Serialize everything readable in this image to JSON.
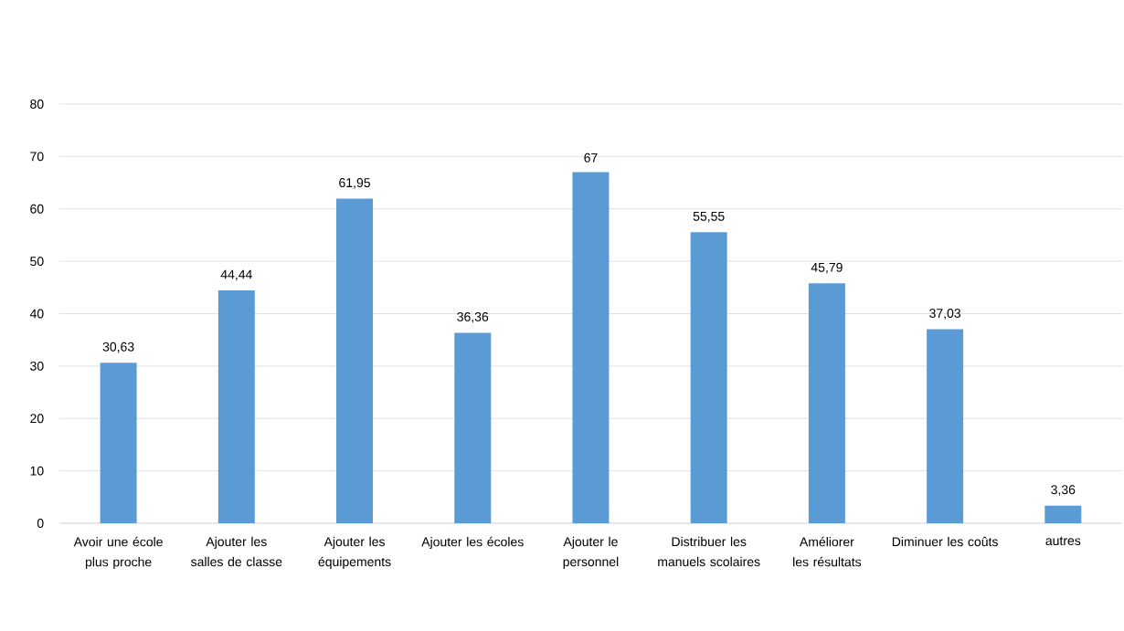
{
  "chart_data": {
    "type": "bar",
    "categories": [
      "Avoir une école plus proche",
      "Ajouter les salles de classe",
      "Ajouter les équipements",
      "Ajouter les écoles",
      "Ajouter le personnel",
      "Distribuer les manuels scolaires",
      "Améliorer les résultats",
      "Diminuer les coûts",
      "autres"
    ],
    "values": [
      30.63,
      44.44,
      61.95,
      36.36,
      67,
      55.55,
      45.79,
      37.03,
      3.36
    ],
    "value_labels": [
      "30,63",
      "44,44",
      "61,95",
      "36,36",
      "67",
      "55,55",
      "45,79",
      "37,03",
      "3,36"
    ],
    "color": "#5b9bd5",
    "ylim": [
      0,
      80
    ],
    "yticks": [
      0,
      10,
      20,
      30,
      40,
      50,
      60,
      70,
      80
    ],
    "grid": "y"
  }
}
